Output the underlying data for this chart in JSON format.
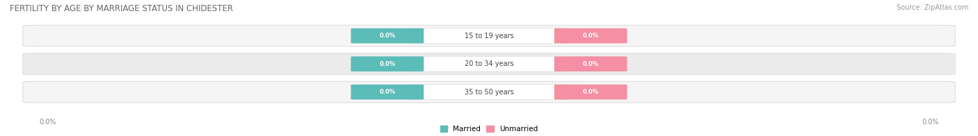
{
  "title": "FERTILITY BY AGE BY MARRIAGE STATUS IN CHIDESTER",
  "source": "Source: ZipAtlas.com",
  "age_groups": [
    "15 to 19 years",
    "20 to 34 years",
    "35 to 50 years"
  ],
  "married_color": "#5bbcb8",
  "unmarried_color": "#f48fa4",
  "bar_bg_color_light": "#f5f5f5",
  "bar_bg_color_dark": "#ebebeb",
  "bar_border_color": "#dedede",
  "center_pill_color": "#ffffff",
  "background_color": "#ffffff",
  "title_fontsize": 8.5,
  "source_fontsize": 7,
  "figsize": [
    14.06,
    1.96
  ],
  "dpi": 100,
  "bar_value_label": "0.0%",
  "axis_label": "0.0%"
}
